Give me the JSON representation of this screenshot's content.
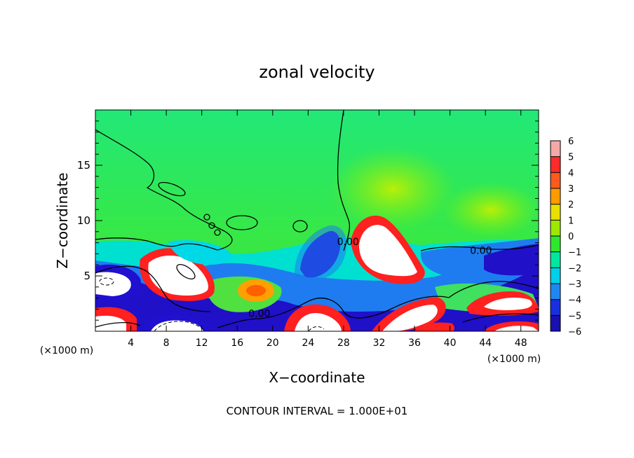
{
  "chart_data": {
    "type": "heatmap",
    "title": "zonal velocity",
    "xlabel": "X−coordinate",
    "ylabel": "Z−coordinate",
    "x_unit_left": "(×1000 m)",
    "x_unit_right": "(×1000 m)",
    "xlim": [
      0,
      50
    ],
    "ylim": [
      0,
      20
    ],
    "x_ticks": [
      4,
      8,
      12,
      16,
      20,
      24,
      28,
      32,
      36,
      40,
      44,
      48
    ],
    "y_ticks": [
      5,
      10,
      15
    ],
    "colorbar": {
      "levels": [
        6,
        5,
        4,
        3,
        2,
        1,
        0,
        -1,
        -2,
        -3,
        -4,
        -5,
        -6
      ],
      "labels": [
        "6",
        "5",
        "4",
        "3",
        "2",
        "1",
        "0",
        "−1",
        "−2",
        "−3",
        "−4",
        "−5",
        "−6"
      ]
    },
    "contour_labels": [
      {
        "text": "0.00",
        "x": 28.5,
        "z": 7.8
      },
      {
        "text": "0.00",
        "x": 43.5,
        "z": 7.0
      },
      {
        "text": "0.00",
        "x": 18.5,
        "z": 1.3
      }
    ],
    "footer": "CONTOUR INTERVAL = 1.000E+01"
  },
  "colors": {
    "background_field": "#22e866",
    "white_region": "#ffffff",
    "positive_high": "#ff2020",
    "negative_high": "#2010d0",
    "contour_line": "#000000"
  }
}
